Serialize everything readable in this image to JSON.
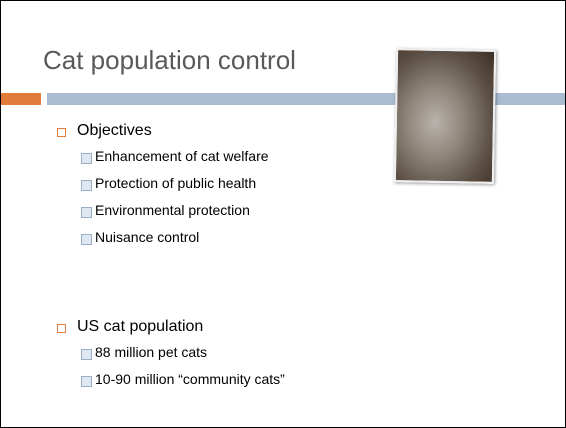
{
  "header": {
    "title": "Cat population control"
  },
  "sections": [
    {
      "heading": "Objectives",
      "items": [
        "Enhancement of cat welfare",
        "Protection of public health",
        "Environmental protection",
        "Nuisance control"
      ]
    },
    {
      "heading": "US cat population",
      "items": [
        "88 million pet cats",
        "10-90 million “community cats”"
      ]
    }
  ]
}
